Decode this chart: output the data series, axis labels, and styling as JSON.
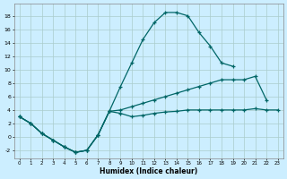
{
  "xlabel": "Humidex (Indice chaleur)",
  "background_color": "#cceeff",
  "grid_color": "#aacccc",
  "line_color": "#006666",
  "x_ticks": [
    0,
    1,
    2,
    3,
    4,
    5,
    6,
    7,
    8,
    9,
    10,
    11,
    12,
    13,
    14,
    15,
    16,
    17,
    18,
    19,
    20,
    21,
    22,
    23
  ],
  "y_ticks": [
    -2,
    0,
    2,
    4,
    6,
    8,
    10,
    12,
    14,
    16,
    18
  ],
  "ylim": [
    -3.2,
    19.8
  ],
  "xlim": [
    -0.5,
    23.5
  ],
  "s1_x": [
    0,
    1,
    2,
    3,
    4,
    5,
    6,
    7,
    8,
    9,
    10,
    11,
    12,
    13,
    14,
    15,
    16,
    17,
    18,
    19
  ],
  "s1_y": [
    3.0,
    2.0,
    0.5,
    -0.5,
    -1.5,
    -2.3,
    -2.0,
    0.3,
    3.8,
    7.5,
    11.0,
    14.5,
    17.0,
    18.5,
    18.5,
    18.0,
    15.5,
    13.5,
    11.0,
    10.5
  ],
  "s2_x": [
    0,
    1,
    2,
    3,
    4,
    5,
    6,
    7,
    8,
    9,
    10,
    11,
    12,
    13,
    14,
    15,
    16,
    17,
    18,
    19,
    20,
    21,
    22
  ],
  "s2_y": [
    3.0,
    2.0,
    0.5,
    -0.5,
    -1.5,
    -2.3,
    -2.0,
    0.3,
    3.8,
    4.0,
    4.5,
    5.0,
    5.5,
    6.0,
    6.5,
    7.0,
    7.5,
    8.0,
    8.5,
    8.5,
    8.5,
    9.0,
    5.5
  ],
  "s3_x": [
    0,
    1,
    2,
    3,
    4,
    5,
    6,
    7,
    8,
    9,
    10,
    11,
    12,
    13,
    14,
    15,
    16,
    17,
    18,
    19,
    20,
    21,
    22,
    23
  ],
  "s3_y": [
    3.0,
    2.0,
    0.5,
    -0.5,
    -1.5,
    -2.3,
    -2.0,
    0.3,
    3.8,
    3.5,
    3.0,
    3.2,
    3.5,
    3.7,
    3.8,
    4.0,
    4.0,
    4.0,
    4.0,
    4.0,
    4.0,
    4.2,
    4.0,
    4.0
  ]
}
